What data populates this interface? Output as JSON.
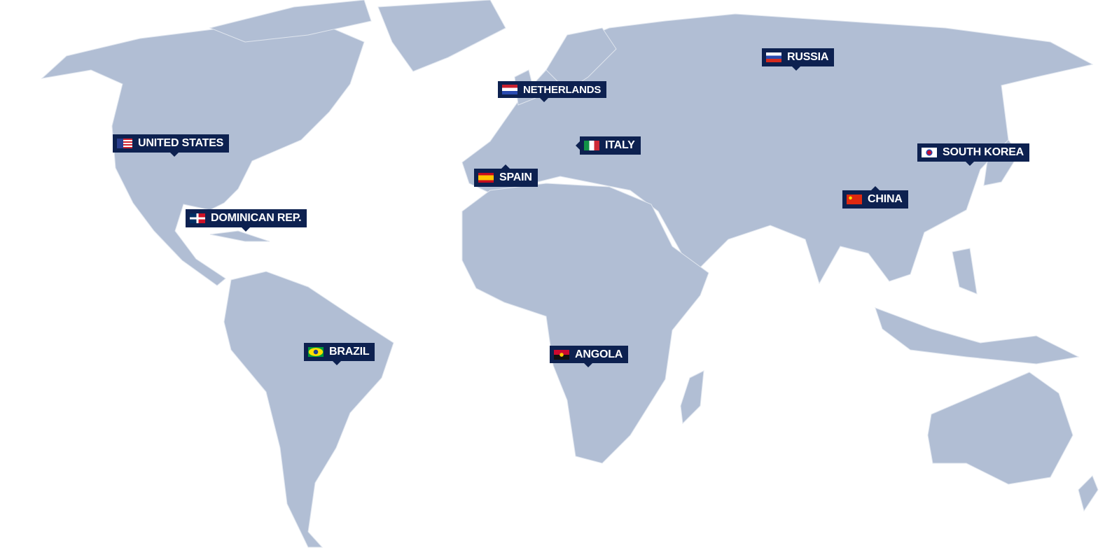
{
  "map": {
    "land_color": "#b1bed4",
    "label_color": "#0d2150",
    "labels": [
      {
        "name": "RUSSIA",
        "flag": "russia-flag"
      },
      {
        "name": "NETHERLANDS",
        "flag": "netherlands-flag"
      },
      {
        "name": "UNITED STATES",
        "flag": "usa-flag"
      },
      {
        "name": "ITALY",
        "flag": "italy-flag"
      },
      {
        "name": "SOUTH KOREA",
        "flag": "south-korea-flag"
      },
      {
        "name": "SPAIN",
        "flag": "spain-flag"
      },
      {
        "name": "CHINA",
        "flag": "china-flag"
      },
      {
        "name": "DOMINICAN REP.",
        "flag": "dominican-republic-flag"
      },
      {
        "name": "BRAZIL",
        "flag": "brazil-flag"
      },
      {
        "name": "ANGOLA",
        "flag": "angola-flag"
      }
    ]
  }
}
